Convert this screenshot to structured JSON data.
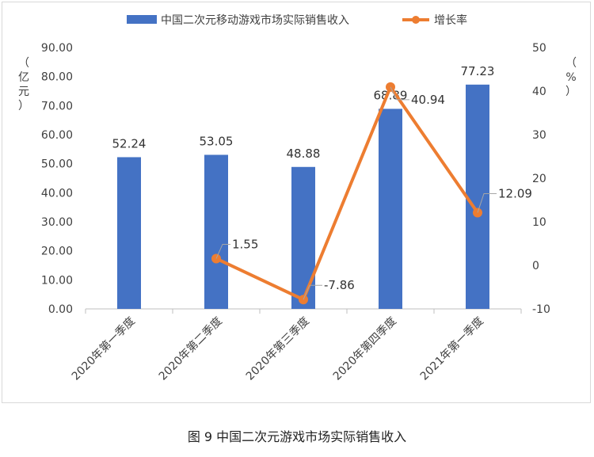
{
  "caption": "图 9 中国二次元游戏市场实际销售收入",
  "colors": {
    "bar": "#4472c4",
    "line": "#ed7d31",
    "grid": "#d9d9d9",
    "axis": "#bfbfbf"
  },
  "chart_data": {
    "type": "bar",
    "title": "",
    "categories": [
      "2020年第一季度",
      "2020年第二季度",
      "2020年第三季度",
      "2020年第四季度",
      "2021年第一季度"
    ],
    "series": [
      {
        "name": "中国二次元移动游戏市场实际销售收入",
        "type": "bar",
        "axis": "left",
        "values": [
          52.24,
          53.05,
          48.88,
          68.89,
          77.23
        ],
        "labels": [
          "52.24",
          "53.05",
          "48.88",
          "68.89",
          "77.23"
        ]
      },
      {
        "name": "增长率",
        "type": "line",
        "axis": "right",
        "values": [
          null,
          1.55,
          -7.86,
          40.94,
          12.09
        ],
        "labels": [
          "",
          "1.55",
          "-7.86",
          "40.94",
          "12.09"
        ]
      }
    ],
    "ylabel": "（亿元）",
    "y2label": "（%）",
    "ylim": [
      0,
      90
    ],
    "y2lim": [
      -10,
      50
    ],
    "yticks": [
      "0.00",
      "10.00",
      "20.00",
      "30.00",
      "40.00",
      "50.00",
      "60.00",
      "70.00",
      "80.00",
      "90.00"
    ],
    "y2ticks": [
      "-10",
      "0",
      "10",
      "20",
      "30",
      "40",
      "50"
    ],
    "legend": "top-center",
    "grid": false
  }
}
